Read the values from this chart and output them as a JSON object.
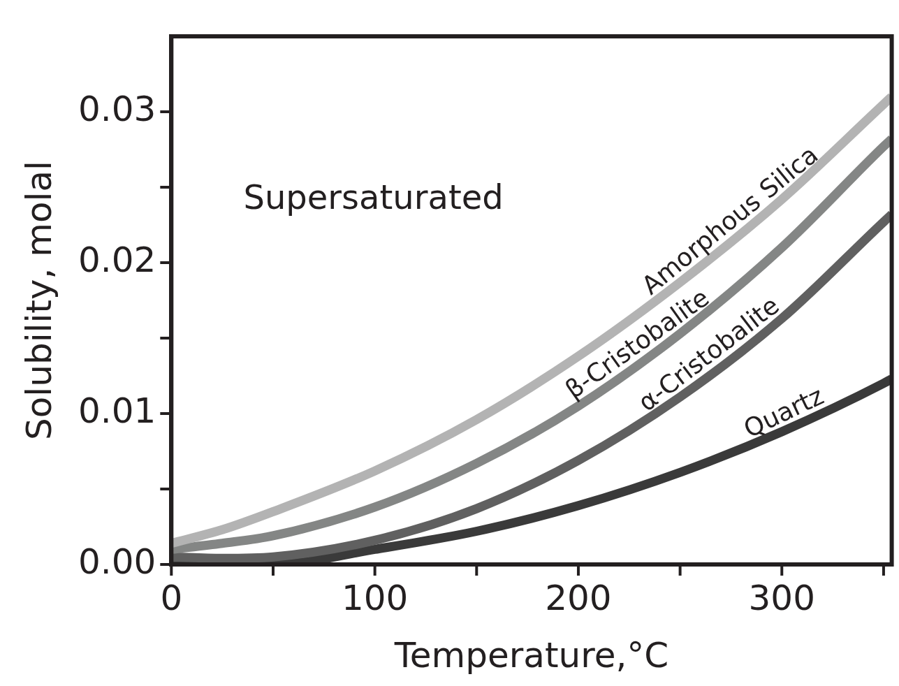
{
  "chart_data": {
    "type": "line",
    "xlabel": "Temperature,°C",
    "ylabel": "Solubility, molal",
    "x": [
      0,
      25,
      50,
      100,
      150,
      200,
      250,
      300,
      350,
      354
    ],
    "series": [
      {
        "name": "Amorphous Silica",
        "color": "#b3b3b3",
        "values": [
          0.0014,
          0.0023,
          0.0035,
          0.0062,
          0.0096,
          0.0138,
          0.0187,
          0.0242,
          0.0305,
          0.031
        ]
      },
      {
        "name": "β-Cristobalite",
        "color": "#848685",
        "values": [
          0.001,
          0.0014,
          0.0019,
          0.0038,
          0.0067,
          0.0105,
          0.0153,
          0.021,
          0.0277,
          0.0282
        ]
      },
      {
        "name": "α-Cristobalite",
        "color": "#606060",
        "values": [
          0.0005,
          0.0004,
          0.0005,
          0.0016,
          0.0037,
          0.0069,
          0.0111,
          0.0163,
          0.0227,
          0.0232
        ]
      },
      {
        "name": "Quartz",
        "color": "#3a3a3a",
        "values": [
          0.0002,
          0.0,
          0.0,
          0.001,
          0.0022,
          0.0039,
          0.0061,
          0.0088,
          0.012,
          0.0123
        ]
      }
    ],
    "xlim": [
      0,
      354
    ],
    "xticks": [
      {
        "value": 0,
        "label": "0"
      },
      {
        "value": 50,
        "label": null
      },
      {
        "value": 100,
        "label": "100"
      },
      {
        "value": 150,
        "label": null
      },
      {
        "value": 200,
        "label": "200"
      },
      {
        "value": 250,
        "label": null
      },
      {
        "value": 300,
        "label": "300"
      },
      {
        "value": 350,
        "label": null
      }
    ],
    "ylim": [
      0,
      0.035
    ],
    "yticks": [
      {
        "value": 0,
        "label": "0.00"
      },
      {
        "value": 0.005,
        "label": null
      },
      {
        "value": 0.01,
        "label": "0.01"
      },
      {
        "value": 0.015,
        "label": null
      },
      {
        "value": 0.02,
        "label": "0.02"
      },
      {
        "value": 0.025,
        "label": null
      },
      {
        "value": 0.03,
        "label": "0.03"
      }
    ],
    "grid": false,
    "legend": false,
    "marker": "none",
    "line_style": "solid",
    "annotations": [
      "Supersaturated"
    ]
  }
}
